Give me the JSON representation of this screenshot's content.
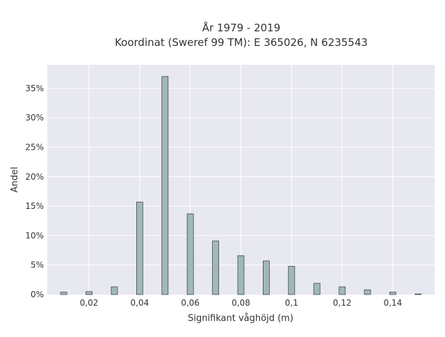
{
  "chart_data": {
    "type": "bar",
    "title_line1": "År 1979 - 2019",
    "title_line2": "Koordinat (Sweref 99 TM): E 365026, N 6235543",
    "xlabel": "Signifikant våghöjd (m)",
    "ylabel": "Andel",
    "x_ticks": [
      {
        "value": 0.02,
        "label": "0,02"
      },
      {
        "value": 0.04,
        "label": "0,04"
      },
      {
        "value": 0.06,
        "label": "0,06"
      },
      {
        "value": 0.08,
        "label": "0,08"
      },
      {
        "value": 0.1,
        "label": "0,1"
      },
      {
        "value": 0.12,
        "label": "0,12"
      },
      {
        "value": 0.14,
        "label": "0,14"
      }
    ],
    "y_ticks": [
      {
        "value": 0,
        "label": "0%"
      },
      {
        "value": 5,
        "label": "5%"
      },
      {
        "value": 10,
        "label": "10%"
      },
      {
        "value": 15,
        "label": "15%"
      },
      {
        "value": 20,
        "label": "20%"
      },
      {
        "value": 25,
        "label": "25%"
      },
      {
        "value": 30,
        "label": "30%"
      },
      {
        "value": 35,
        "label": "35%"
      }
    ],
    "xlim": [
      0.0035,
      0.1565
    ],
    "ylim": [
      0,
      39
    ],
    "grid": true,
    "bars": [
      {
        "x": 0.01,
        "value": 0.4
      },
      {
        "x": 0.02,
        "value": 0.5
      },
      {
        "x": 0.03,
        "value": 1.3
      },
      {
        "x": 0.04,
        "value": 15.7
      },
      {
        "x": 0.05,
        "value": 37.0
      },
      {
        "x": 0.06,
        "value": 13.7
      },
      {
        "x": 0.07,
        "value": 9.1
      },
      {
        "x": 0.08,
        "value": 6.6
      },
      {
        "x": 0.09,
        "value": 5.7
      },
      {
        "x": 0.1,
        "value": 4.8
      },
      {
        "x": 0.11,
        "value": 1.9
      },
      {
        "x": 0.12,
        "value": 1.3
      },
      {
        "x": 0.13,
        "value": 0.8
      },
      {
        "x": 0.14,
        "value": 0.4
      },
      {
        "x": 0.15,
        "value": 0.1
      }
    ],
    "colors": {
      "plot_background": "#e8e8f0",
      "grid": "#ffffff",
      "bar_fill": "#a2b8b8",
      "bar_stroke": "#3d4a4a"
    }
  }
}
